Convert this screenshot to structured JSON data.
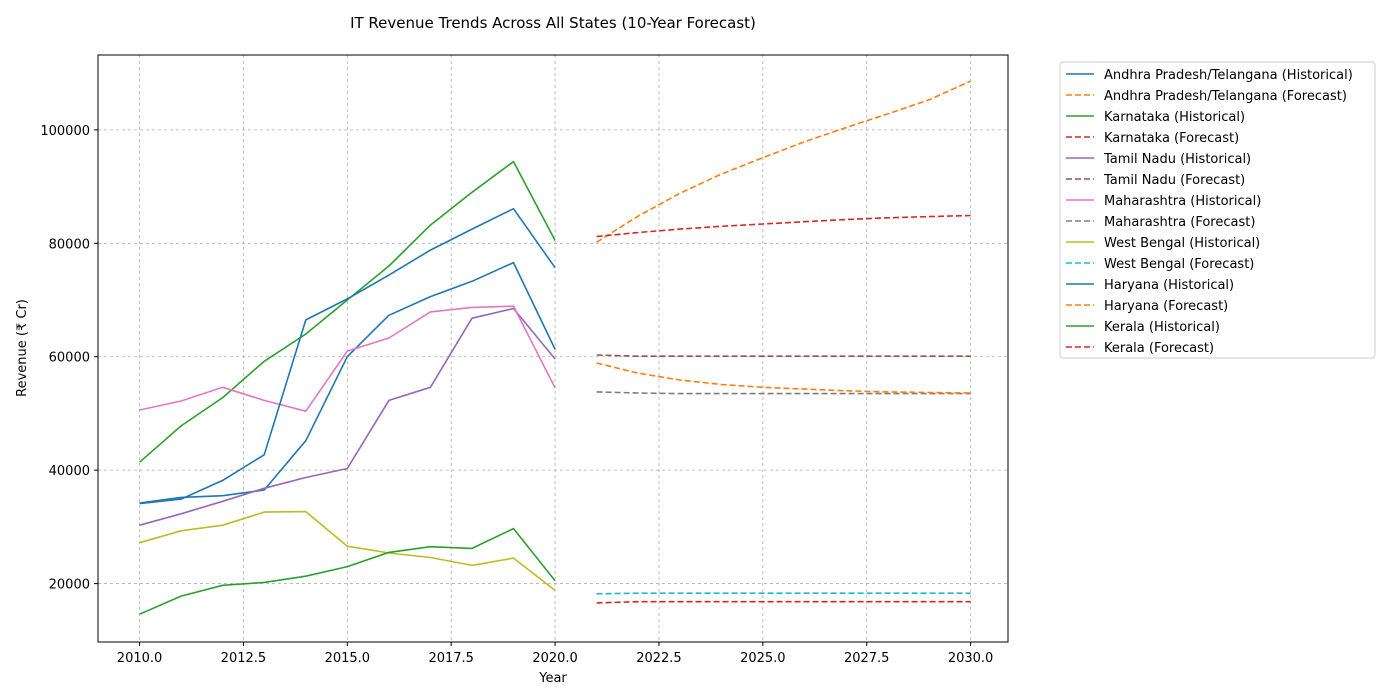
{
  "chart_data": {
    "type": "line",
    "title": "IT Revenue Trends Across All States (10-Year Forecast)",
    "xlabel": "Year",
    "ylabel": "Revenue (₹ Cr)",
    "xlim": [
      2009.0,
      2030.9
    ],
    "ylim": [
      9700,
      113200
    ],
    "xticks": [
      2010.0,
      2012.5,
      2015.0,
      2017.5,
      2020.0,
      2022.5,
      2025.0,
      2027.5,
      2030.0
    ],
    "xtick_labels": [
      "2010.0",
      "2012.5",
      "2015.0",
      "2017.5",
      "2020.0",
      "2022.5",
      "2025.0",
      "2027.5",
      "2030.0"
    ],
    "yticks": [
      20000,
      40000,
      60000,
      80000,
      100000
    ],
    "ytick_labels": [
      "20000",
      "40000",
      "60000",
      "80000",
      "100000"
    ],
    "grid": true,
    "legend_position": "outside-right",
    "series": [
      {
        "name": "Andhra Pradesh/Telangana (Historical)",
        "style": "solid",
        "color": "#1f77b4",
        "x": [
          2010,
          2011,
          2012,
          2013,
          2014,
          2015,
          2016,
          2017,
          2018,
          2019,
          2020
        ],
        "y": [
          34200,
          35200,
          35500,
          36500,
          45200,
          60000,
          67300,
          70600,
          73300,
          76600,
          61300
        ]
      },
      {
        "name": "Andhra Pradesh/Telangana (Forecast)",
        "style": "dashed",
        "color": "#ff7f0e",
        "x": [
          2021,
          2022,
          2023,
          2024,
          2025,
          2026,
          2027,
          2028,
          2029,
          2030
        ],
        "y": [
          80200,
          84800,
          88800,
          92200,
          95100,
          97900,
          100400,
          102800,
          105300,
          108600
        ]
      },
      {
        "name": "Karnataka (Historical)",
        "style": "solid",
        "color": "#2ca02c",
        "x": [
          2010,
          2011,
          2012,
          2013,
          2014,
          2015,
          2016,
          2017,
          2018,
          2019,
          2020
        ],
        "y": [
          41400,
          47800,
          52800,
          59200,
          64000,
          70000,
          76000,
          83200,
          89000,
          94400,
          80500
        ]
      },
      {
        "name": "Karnataka (Forecast)",
        "style": "dashed",
        "color": "#d62728",
        "x": [
          2021,
          2022,
          2023,
          2024,
          2025,
          2026,
          2027,
          2028,
          2029,
          2030
        ],
        "y": [
          81200,
          81900,
          82500,
          83000,
          83400,
          83800,
          84200,
          84500,
          84700,
          84900
        ]
      },
      {
        "name": "Tamil Nadu (Historical)",
        "style": "solid",
        "color": "#9467bd",
        "x": [
          2010,
          2011,
          2012,
          2013,
          2014,
          2015,
          2016,
          2017,
          2018,
          2019,
          2020
        ],
        "y": [
          30300,
          32300,
          34500,
          36800,
          38700,
          40300,
          52300,
          54600,
          66800,
          68500,
          59600
        ]
      },
      {
        "name": "Tamil Nadu (Forecast)",
        "style": "dashed",
        "color": "#8c564b",
        "x": [
          2021,
          2022,
          2023,
          2024,
          2025,
          2026,
          2027,
          2028,
          2029,
          2030
        ],
        "y": [
          60300,
          60100,
          60100,
          60100,
          60100,
          60100,
          60100,
          60100,
          60100,
          60100
        ]
      },
      {
        "name": "Maharashtra (Historical)",
        "style": "solid",
        "color": "#e377c2",
        "x": [
          2010,
          2011,
          2012,
          2013,
          2014,
          2015,
          2016,
          2017,
          2018,
          2019,
          2020
        ],
        "y": [
          50600,
          52200,
          54600,
          52300,
          50400,
          61000,
          63300,
          67900,
          68700,
          68900,
          54500
        ]
      },
      {
        "name": "Maharashtra (Forecast)",
        "style": "dashed",
        "color": "#7f7f7f",
        "x": [
          2021,
          2022,
          2023,
          2024,
          2025,
          2026,
          2027,
          2028,
          2029,
          2030
        ],
        "y": [
          53800,
          53600,
          53500,
          53500,
          53500,
          53500,
          53500,
          53500,
          53500,
          53500
        ]
      },
      {
        "name": "West Bengal (Historical)",
        "style": "solid",
        "color": "#bcbd22",
        "x": [
          2010,
          2011,
          2012,
          2013,
          2014,
          2015,
          2016,
          2017,
          2018,
          2019,
          2020
        ],
        "y": [
          27200,
          29300,
          30300,
          32600,
          32700,
          26600,
          25400,
          24600,
          23200,
          24500,
          18800
        ]
      },
      {
        "name": "West Bengal (Forecast)",
        "style": "dashed",
        "color": "#17becf",
        "x": [
          2021,
          2022,
          2023,
          2024,
          2025,
          2026,
          2027,
          2028,
          2029,
          2030
        ],
        "y": [
          18200,
          18300,
          18300,
          18300,
          18300,
          18300,
          18300,
          18300,
          18300,
          18300
        ]
      },
      {
        "name": "Haryana (Historical)",
        "style": "solid",
        "color": "#1f77b4",
        "x": [
          2010,
          2011,
          2012,
          2013,
          2014,
          2015,
          2016,
          2017,
          2018,
          2019,
          2020
        ],
        "y": [
          34100,
          34900,
          38200,
          42700,
          66500,
          70200,
          74400,
          78800,
          82500,
          86100,
          75700
        ]
      },
      {
        "name": "Haryana (Forecast)",
        "style": "dashed",
        "color": "#ff7f0e",
        "x": [
          2021,
          2022,
          2023,
          2024,
          2025,
          2026,
          2027,
          2028,
          2029,
          2030
        ],
        "y": [
          58900,
          57100,
          55900,
          55100,
          54600,
          54300,
          54000,
          53800,
          53700,
          53600
        ]
      },
      {
        "name": "Kerala (Historical)",
        "style": "solid",
        "color": "#2ca02c",
        "x": [
          2010,
          2011,
          2012,
          2013,
          2014,
          2015,
          2016,
          2017,
          2018,
          2019,
          2020
        ],
        "y": [
          14600,
          17800,
          19700,
          20200,
          21300,
          23000,
          25500,
          26500,
          26200,
          29700,
          20500
        ]
      },
      {
        "name": "Kerala (Forecast)",
        "style": "dashed",
        "color": "#d62728",
        "x": [
          2021,
          2022,
          2023,
          2024,
          2025,
          2026,
          2027,
          2028,
          2029,
          2030
        ],
        "y": [
          16600,
          16800,
          16800,
          16800,
          16800,
          16800,
          16800,
          16800,
          16800,
          16800
        ]
      }
    ]
  }
}
